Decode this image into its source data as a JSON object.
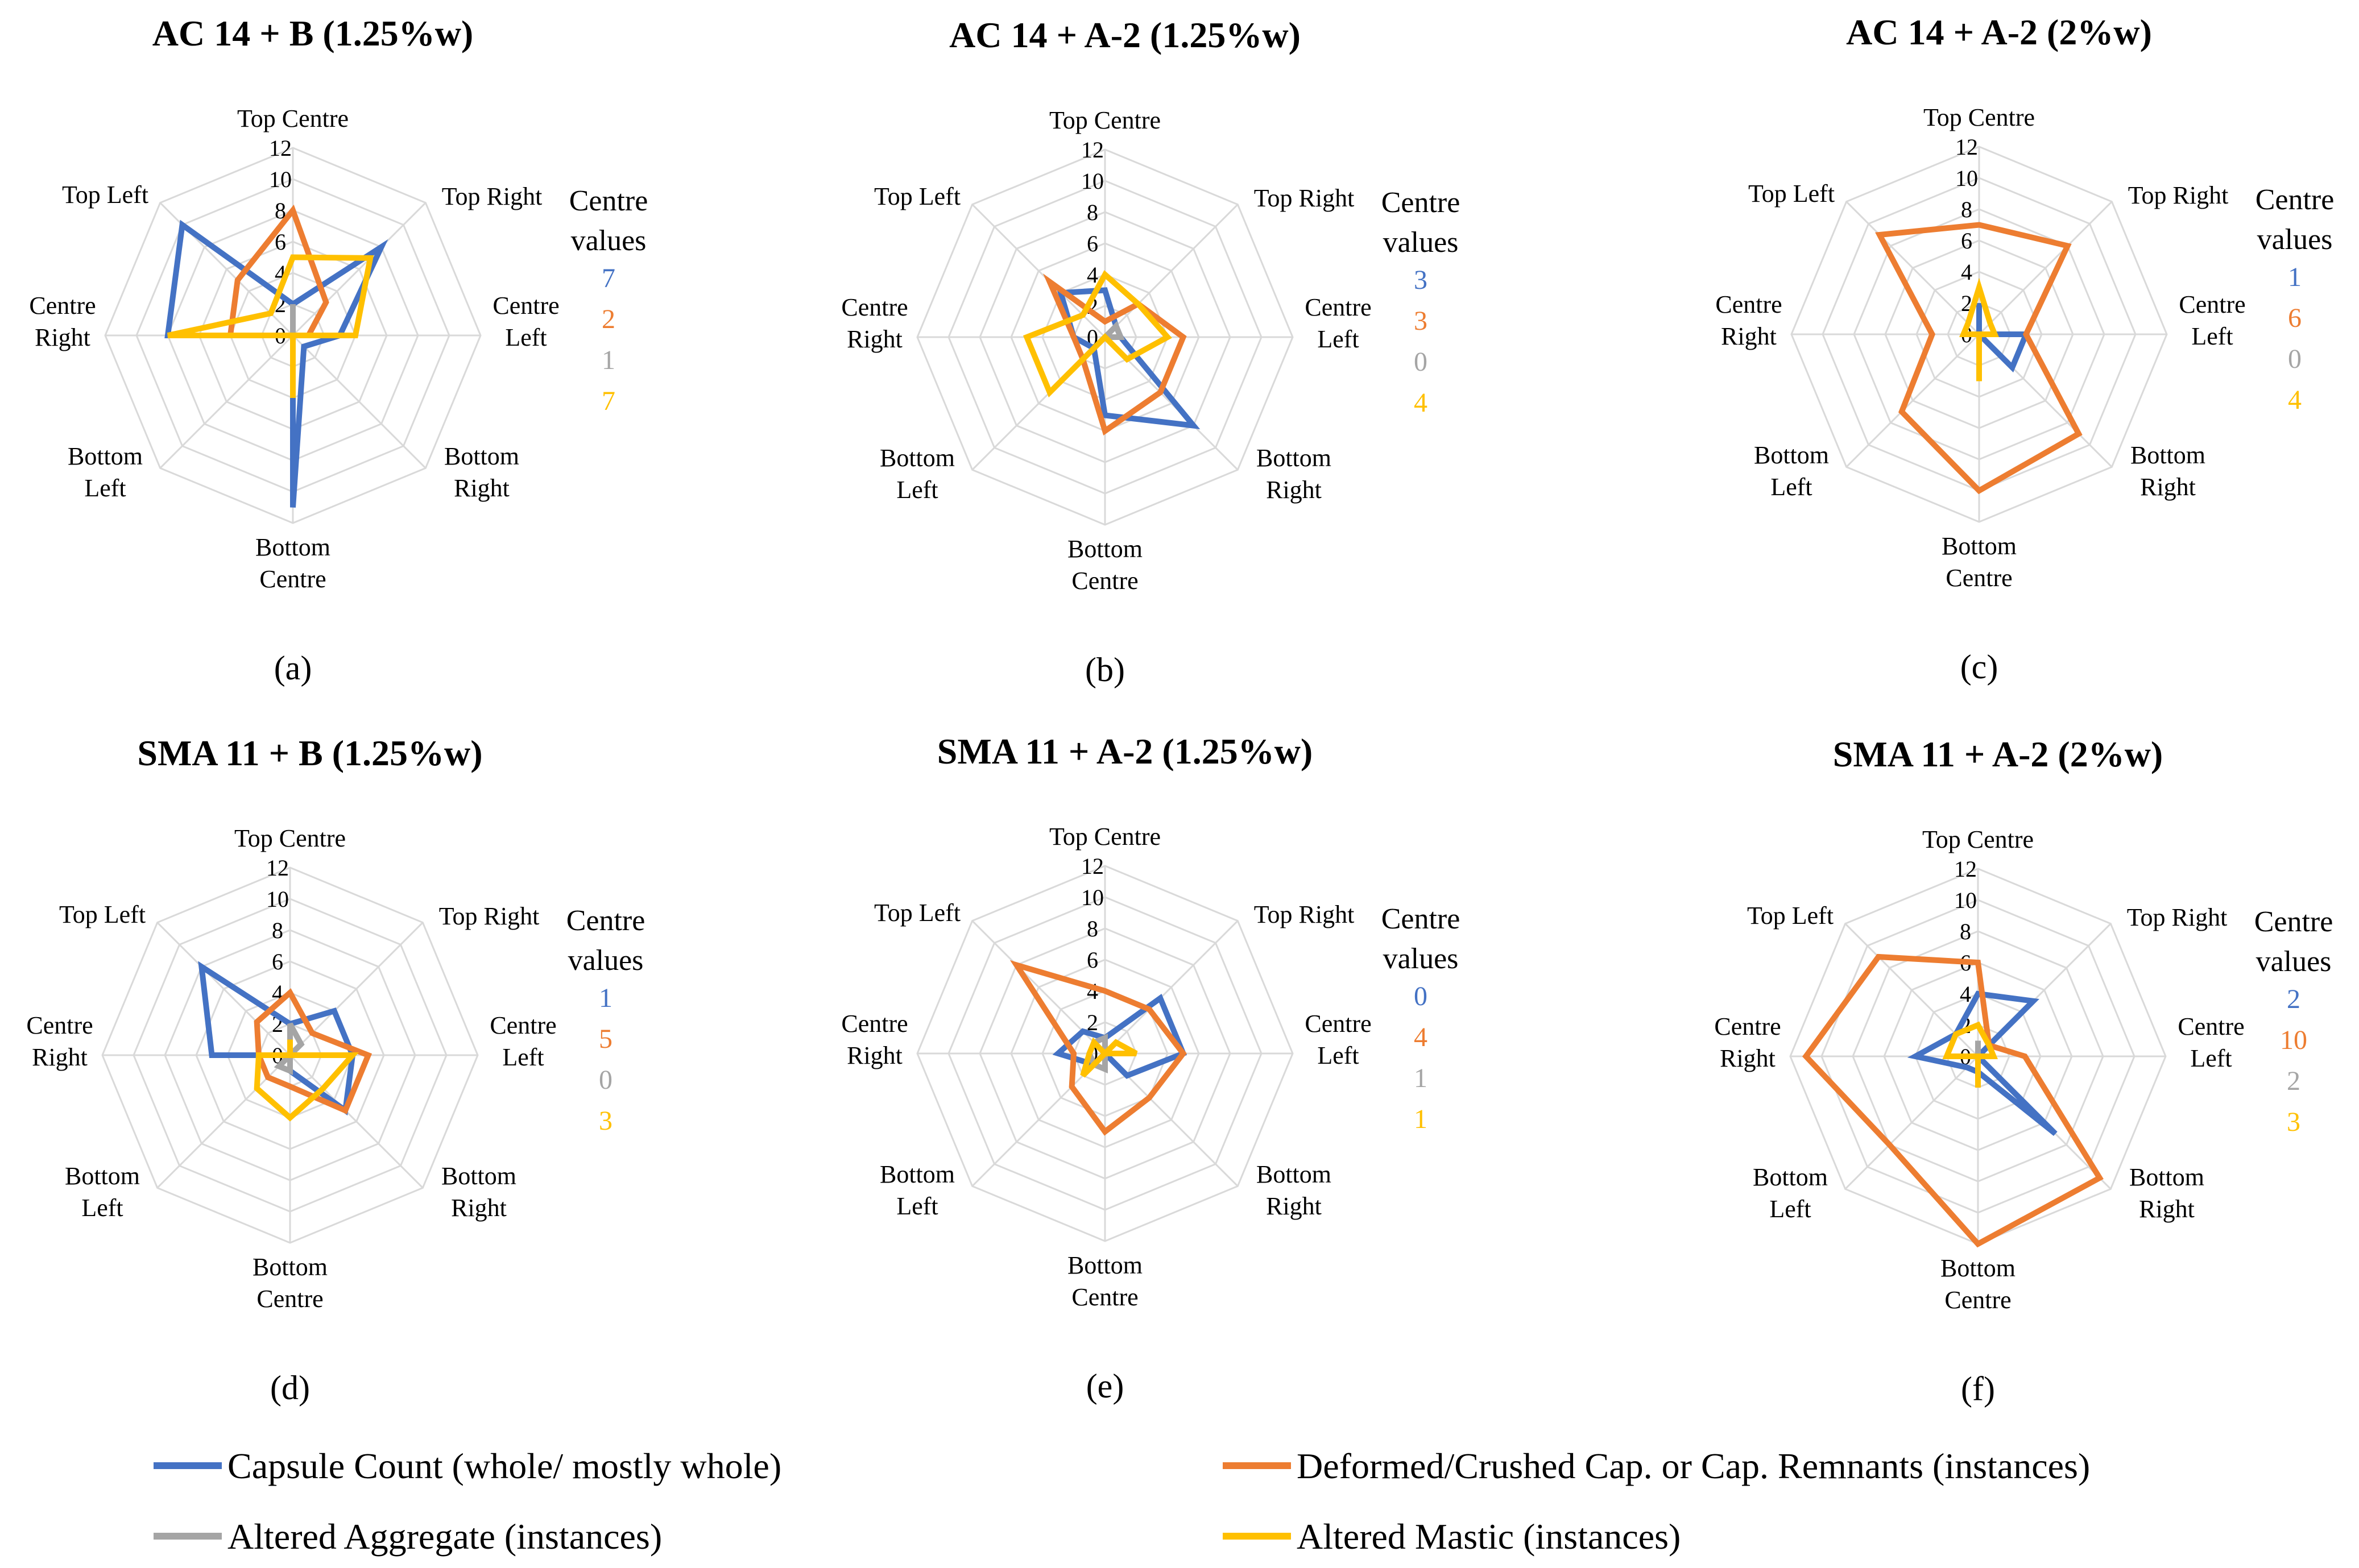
{
  "chart_data": {
    "type": "radar",
    "axes": [
      "Top Centre",
      "Top Right",
      "Centre Left",
      "Bottom Right",
      "Bottom Centre",
      "Bottom Left",
      "Centre Right",
      "Top Left"
    ],
    "axis_labels": [
      [
        "Top Centre"
      ],
      [
        "Top Right"
      ],
      [
        "Centre",
        "Left"
      ],
      [
        "Bottom",
        "Right"
      ],
      [
        "Bottom",
        "Centre"
      ],
      [
        "Bottom",
        "Left"
      ],
      [
        "Centre",
        "Right"
      ],
      [
        "Top Left"
      ]
    ],
    "range": [
      0,
      12
    ],
    "ticks": [
      "0",
      "2",
      "4",
      "6",
      "8",
      "10",
      "12"
    ],
    "centre_values_title": [
      "Centre",
      "values"
    ],
    "colors": {
      "capsule": "#4472C4",
      "deformed": "#ED7D31",
      "aggregate": "#A5A5A5",
      "mastic": "#FFC000",
      "grid": "#D9D9D9"
    },
    "legend": [
      {
        "key": "capsule",
        "label": "Capsule Count (whole/ mostly whole)"
      },
      {
        "key": "deformed",
        "label": "Deformed/Crushed Cap. or Cap. Remnants (instances)"
      },
      {
        "key": "aggregate",
        "label": "Altered Aggregate (instances)"
      },
      {
        "key": "mastic",
        "label": "Altered Mastic (instances)"
      }
    ],
    "panels": [
      {
        "title": "AC 14 + B (1.25%w)",
        "letter": "(a)",
        "centre_values": {
          "capsule": "7",
          "deformed": "2",
          "aggregate": "1",
          "mastic": "7"
        },
        "series": [
          {
            "key": "capsule",
            "values": [
              2,
              8,
              3,
              1,
              11,
              0,
              8,
              10
            ]
          },
          {
            "key": "deformed",
            "values": [
              8,
              3,
              1,
              0,
              0,
              0,
              4,
              5
            ]
          },
          {
            "key": "aggregate",
            "values": [
              2,
              0,
              0,
              0,
              0,
              0,
              0,
              0
            ]
          },
          {
            "key": "mastic",
            "values": [
              5,
              7,
              4,
              0,
              4,
              0,
              8,
              2
            ]
          }
        ]
      },
      {
        "title": "AC 14 + A-2 (1.25%w)",
        "letter": "(b)",
        "centre_values": {
          "capsule": "3",
          "deformed": "3",
          "aggregate": "0",
          "mastic": "4"
        },
        "series": [
          {
            "key": "capsule",
            "values": [
              3,
              1,
              1,
              8,
              5,
              1,
              2,
              4
            ]
          },
          {
            "key": "deformed",
            "values": [
              1,
              3,
              5,
              5,
              6,
              2,
              2,
              5
            ]
          },
          {
            "key": "aggregate",
            "values": [
              0,
              1,
              1,
              0,
              0,
              1,
              0,
              0
            ]
          },
          {
            "key": "mastic",
            "values": [
              4,
              3,
              4,
              2,
              0,
              5,
              5,
              2
            ]
          }
        ]
      },
      {
        "title": "AC 14 + A-2 (2%w)",
        "letter": "(c)",
        "centre_values": {
          "capsule": "1",
          "deformed": "6",
          "aggregate": "0",
          "mastic": "4"
        },
        "series": [
          {
            "key": "capsule",
            "values": [
              2,
              0,
              3,
              3,
              0,
              0,
              0,
              0
            ]
          },
          {
            "key": "deformed",
            "values": [
              7,
              8,
              3,
              9,
              10,
              7,
              3,
              9
            ]
          },
          {
            "key": "aggregate",
            "values": [
              0,
              0,
              0,
              0,
              0,
              0,
              0,
              0
            ]
          },
          {
            "key": "mastic",
            "values": [
              3,
              1,
              1,
              0,
              3,
              0,
              1,
              1
            ]
          }
        ]
      },
      {
        "title": "SMA 11 + B (1.25%w)",
        "letter": "(d)",
        "centre_values": {
          "capsule": "1",
          "deformed": "5",
          "aggregate": "0",
          "mastic": "3"
        },
        "series": [
          {
            "key": "capsule",
            "values": [
              2,
              4,
              4,
              5,
              1,
              0,
              5,
              8
            ]
          },
          {
            "key": "deformed",
            "values": [
              4,
              2,
              5,
              5,
              2,
              2,
              2,
              3
            ]
          },
          {
            "key": "aggregate",
            "values": [
              2,
              1,
              0,
              0,
              1,
              1,
              0,
              0
            ]
          },
          {
            "key": "mastic",
            "values": [
              1,
              0,
              4,
              3,
              4,
              3,
              2,
              0
            ]
          }
        ]
      },
      {
        "title": "SMA 11 + A-2 (1.25%w)",
        "letter": "(e)",
        "centre_values": {
          "capsule": "0",
          "deformed": "4",
          "aggregate": "1",
          "mastic": "1"
        },
        "series": [
          {
            "key": "capsule",
            "values": [
              1,
              5,
              5,
              2,
              0,
              1,
              3,
              2
            ]
          },
          {
            "key": "deformed",
            "values": [
              4,
              4,
              5,
              4,
              5,
              3,
              2,
              8
            ]
          },
          {
            "key": "aggregate",
            "values": [
              1,
              0,
              0,
              0,
              1,
              1,
              1,
              1
            ]
          },
          {
            "key": "mastic",
            "values": [
              0,
              1,
              2,
              0,
              0,
              2,
              1,
              1
            ]
          }
        ]
      },
      {
        "title": "SMA 11 + A-2 (2%w)",
        "letter": "(f)",
        "centre_values": {
          "capsule": "2",
          "deformed": "10",
          "aggregate": "2",
          "mastic": "3"
        },
        "series": [
          {
            "key": "capsule",
            "values": [
              4,
              5,
              0,
              7,
              1,
              1,
              4,
              2
            ]
          },
          {
            "key": "deformed",
            "values": [
              6,
              1,
              3,
              11,
              12,
              8,
              11,
              9
            ]
          },
          {
            "key": "aggregate",
            "values": [
              1,
              0,
              1,
              0,
              1,
              0,
              1,
              0
            ]
          },
          {
            "key": "mastic",
            "values": [
              2,
              1,
              1,
              0,
              2,
              0,
              2,
              2
            ]
          }
        ]
      }
    ]
  }
}
